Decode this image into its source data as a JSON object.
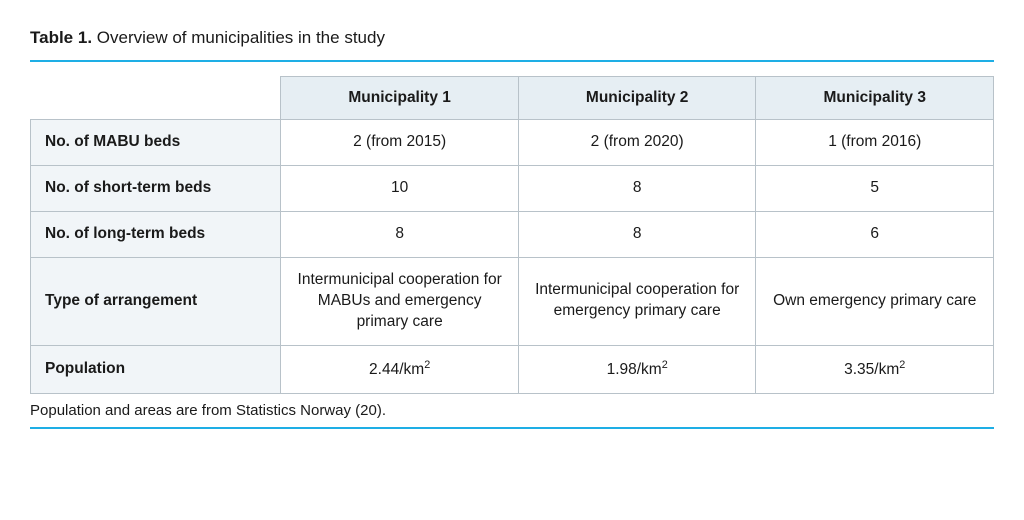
{
  "caption": {
    "lead": "Table 1.",
    "rest": " Overview of municipalities in the study"
  },
  "accent_color": "#1eaee5",
  "header_bg": "#e6eef3",
  "rowhead_bg": "#f1f5f8",
  "border_color": "#b8c2c9",
  "columns": [
    "Municipality 1",
    "Municipality 2",
    "Municipality 3"
  ],
  "rows": [
    {
      "label": "No. of MABU beds",
      "cells": [
        "2 (from 2015)",
        "2 (from 2020)",
        "1 (from 2016)"
      ]
    },
    {
      "label": "No. of short-term beds",
      "cells": [
        "10",
        "8",
        "5"
      ]
    },
    {
      "label": "No. of long-term beds",
      "cells": [
        "8",
        "8",
        "6"
      ]
    },
    {
      "label": "Type of arrangement",
      "cells": [
        "Intermunicipal cooperation for MABUs and emergency primary care",
        "Intermunicipal cooperation for emergency primary care",
        "Own emergency primary care"
      ]
    },
    {
      "label": "Population",
      "cells": [
        "2.44/km²",
        "1.98/km²",
        "3.35/km²"
      ],
      "superscript_trailing_digit": true
    }
  ],
  "footnote": "Population and areas are from Statistics Norway (20).",
  "col_widths_pct": [
    26,
    24.666,
    24.666,
    24.666
  ]
}
